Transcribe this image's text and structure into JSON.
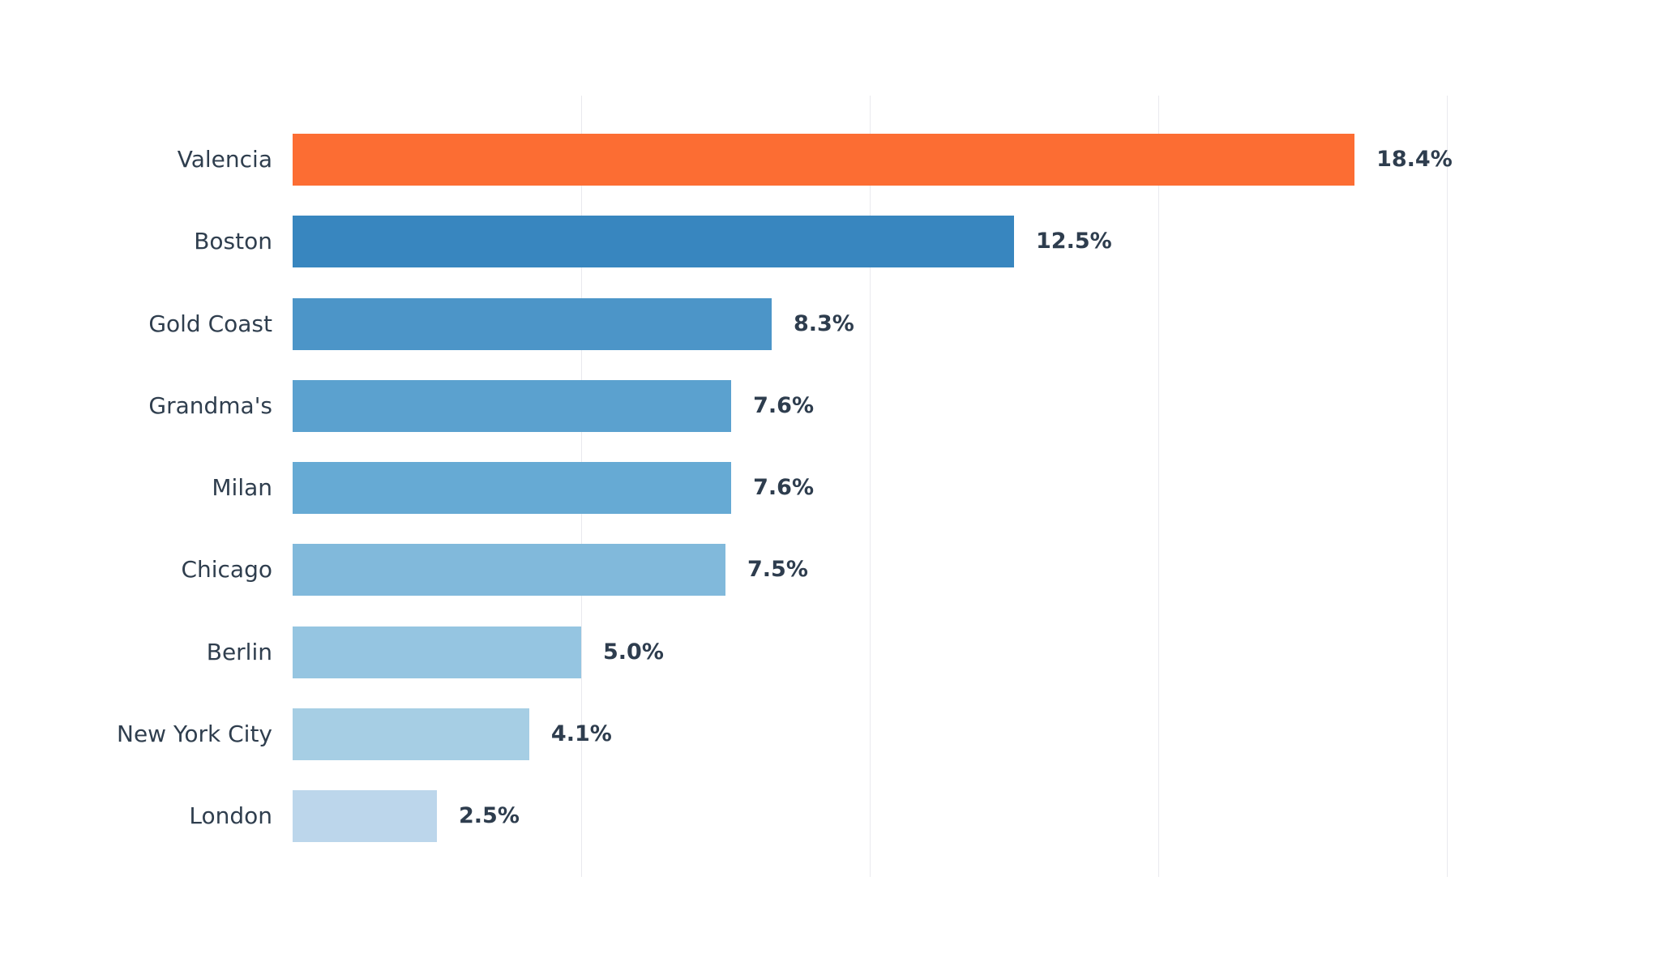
{
  "chart_data": {
    "type": "bar",
    "orientation": "horizontal",
    "title": "",
    "xlabel": "",
    "ylabel": "",
    "categories": [
      "Valencia",
      "Boston",
      "Gold Coast",
      "Grandma's",
      "Milan",
      "Chicago",
      "Berlin",
      "New York City",
      "London"
    ],
    "values": [
      18.4,
      12.5,
      8.3,
      7.6,
      7.6,
      7.5,
      5.0,
      4.1,
      2.5
    ],
    "value_labels": [
      "18.4%",
      "12.5%",
      "8.3%",
      "7.6%",
      "7.6%",
      "7.5%",
      "5.0%",
      "4.1%",
      "2.5%"
    ],
    "bar_colors": [
      "#FC6D33",
      "#3886BF",
      "#4C95C8",
      "#5BA1CF",
      "#66AAD4",
      "#81B9DB",
      "#95C5E1",
      "#A6CEE4",
      "#BCD6EB"
    ],
    "highlight_color": "#FC6D33",
    "label_color": "#2F3E4E",
    "value_label_color": "#2E3D4E",
    "background_color": "#FFFFFF",
    "grid_color": "#E9E9EE",
    "grid_on": true,
    "gridline_values": [
      5,
      10,
      15,
      20
    ],
    "xlim": [
      0,
      22
    ],
    "legend": "none",
    "x_tick_labels_visible": false
  }
}
